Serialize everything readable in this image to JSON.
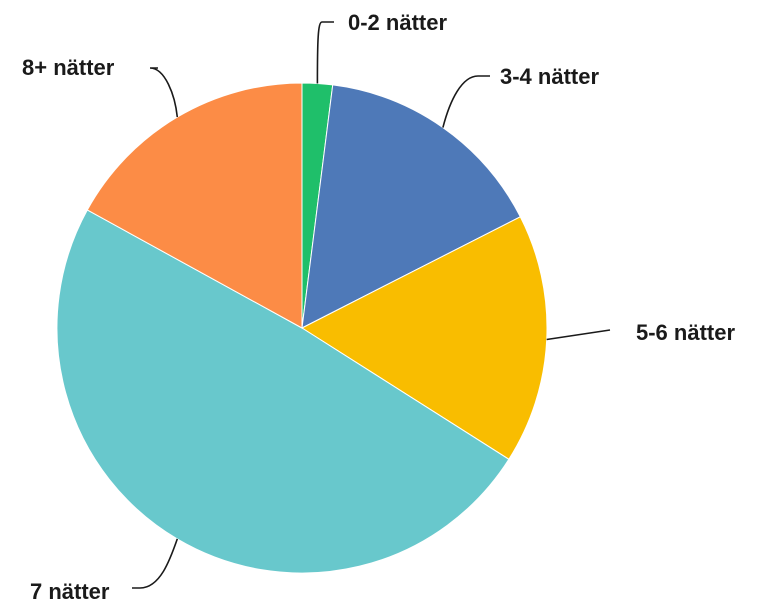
{
  "chart_data": {
    "type": "pie",
    "title": "",
    "categories": [
      "0-2 nätter",
      "3-4 nätter",
      "5-6 nätter",
      "7 nätter",
      "8+ nätter"
    ],
    "values": [
      2,
      15.5,
      16.5,
      49,
      17
    ],
    "colors": [
      "#1fbf6a",
      "#4e79b8",
      "#f9bd00",
      "#68c8cc",
      "#fc8c46"
    ],
    "start_angle_deg": 0,
    "direction": "clockwise",
    "legend": "none",
    "labels": "outside-with-leader-lines"
  }
}
